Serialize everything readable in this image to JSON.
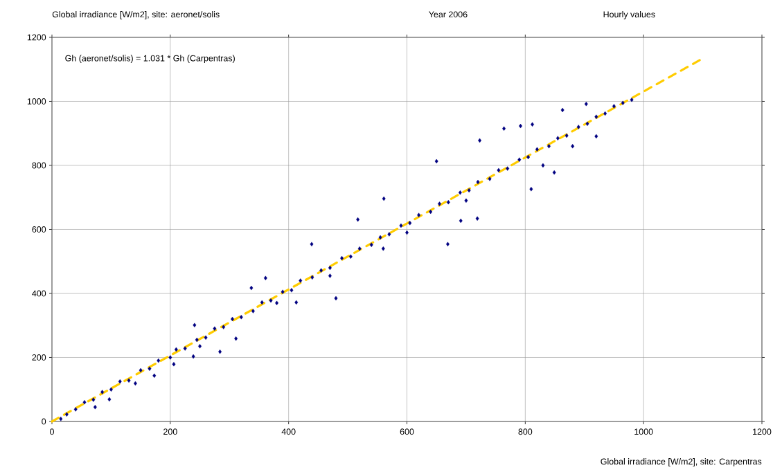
{
  "chart_data": {
    "type": "scatter",
    "title": "Global irradiance [W/m2], site: aeronet/solis",
    "subtitle": "Year 2006",
    "xlabel": "Global irradiance [W/m2], site: Carpentras",
    "annotations": [
      "Hourly values",
      "Gh (aeronet/solis) = 1.031 * Gh (Carpentras)"
    ],
    "xlim": [
      0,
      1200
    ],
    "ylim": [
      0,
      1200
    ],
    "xticks": [
      0,
      200,
      400,
      600,
      800,
      1000,
      1200
    ],
    "yticks": [
      0,
      200,
      400,
      600,
      800,
      1000,
      1200
    ],
    "grid": true,
    "legend": false,
    "series": [
      {
        "color": "#000080",
        "marker": "diamond",
        "x": [
          15,
          25,
          40,
          55,
          70,
          85,
          100,
          115,
          130,
          150,
          165,
          180,
          200,
          210,
          225,
          245,
          260,
          275,
          290,
          305,
          320,
          340,
          355,
          370,
          390,
          405,
          420,
          440,
          455,
          470,
          490,
          505,
          520,
          540,
          555,
          570,
          590,
          605,
          620,
          640,
          655,
          670,
          690,
          705,
          720,
          740,
          755,
          770,
          790,
          805,
          820,
          840,
          855,
          870,
          890,
          905,
          920,
          935,
          950,
          965,
          980,
          560,
          600,
          380,
          250,
          880,
          700,
          830,
          470,
          650,
          669,
          480,
          863,
          849,
          810,
          439,
          517,
          561,
          764,
          792,
          723,
          719,
          691,
          284,
          311,
          241,
          337,
          361,
          73,
          97,
          141,
          173,
          239,
          206,
          413,
          920,
          903,
          812
        ],
        "values": [
          8,
          22,
          38,
          60,
          68,
          92,
          100,
          125,
          128,
          160,
          165,
          190,
          200,
          225,
          228,
          255,
          262,
          290,
          295,
          320,
          326,
          345,
          372,
          378,
          405,
          410,
          440,
          450,
          472,
          480,
          510,
          515,
          540,
          552,
          575,
          585,
          612,
          620,
          645,
          655,
          680,
          685,
          715,
          722,
          748,
          758,
          785,
          790,
          818,
          826,
          850,
          860,
          885,
          893,
          920,
          930,
          952,
          962,
          985,
          995,
          1005,
          540,
          590,
          370,
          235,
          860,
          690,
          800,
          455,
          813,
          554,
          385,
          973,
          778,
          726,
          554,
          631,
          696,
          915,
          923,
          878,
          634,
          627,
          218,
          259,
          301,
          417,
          448,
          45,
          69,
          119,
          143,
          203,
          179,
          372,
          891,
          992,
          928
        ]
      },
      {
        "type": "line",
        "color": "#ffcc00",
        "line_style": "dashed",
        "marker": "none",
        "x": [
          0,
          1100
        ],
        "values": [
          0,
          1134
        ]
      }
    ]
  }
}
